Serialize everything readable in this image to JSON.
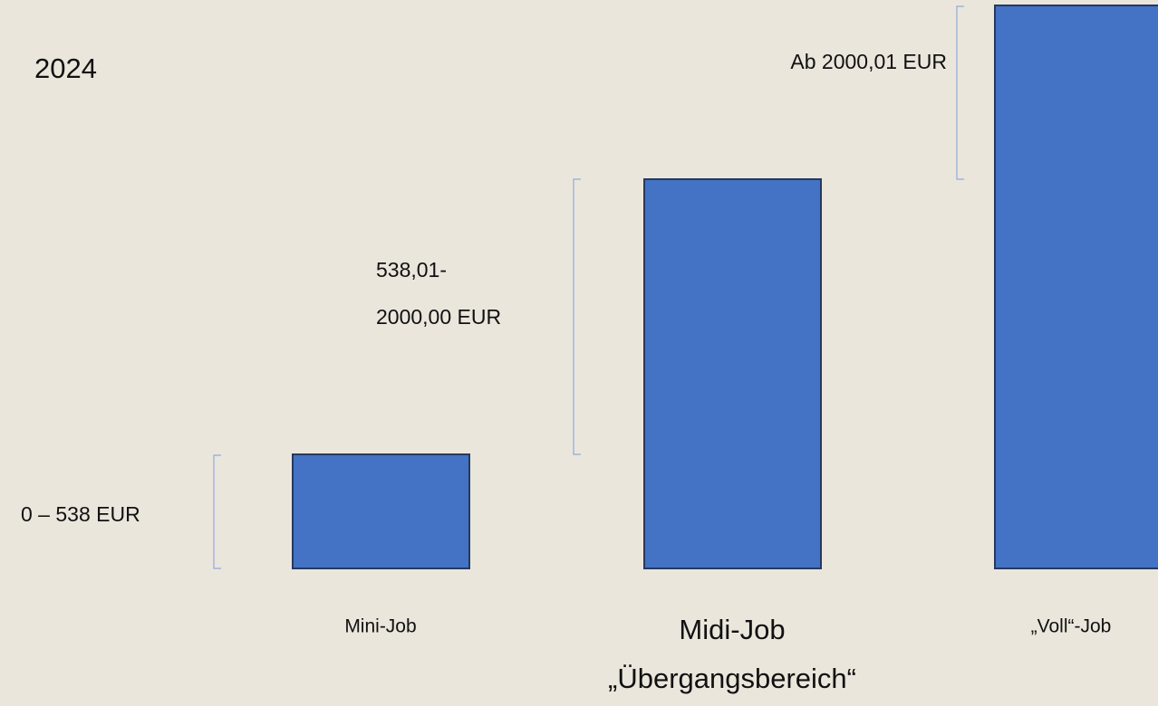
{
  "year": "2024",
  "jobs": [
    {
      "range": [
        "0 – 538 EUR"
      ],
      "name": [
        "Mini-Job"
      ]
    },
    {
      "range": [
        "538,01-",
        "2000,00 EUR"
      ],
      "name": [
        "Midi-Job",
        "„Übergangsbereich“"
      ]
    },
    {
      "range": [
        "Ab 2000,01 EUR"
      ],
      "name": [
        "„Voll“-Job"
      ]
    }
  ]
}
